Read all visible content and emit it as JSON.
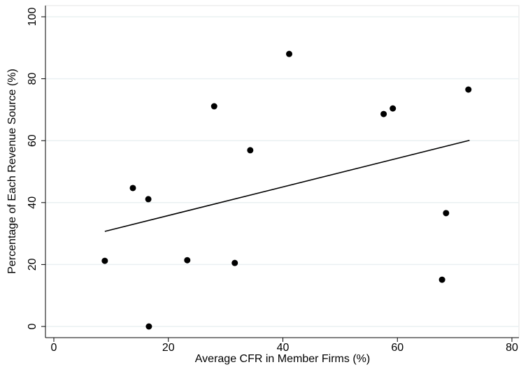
{
  "chart_data": {
    "type": "scatter",
    "x_label": "Average CFR in Member Firms (%)",
    "y_label": "Percentage of Each Revenue Source (%)",
    "xlim": [
      0,
      80
    ],
    "xticks": [
      0,
      20,
      40,
      60,
      80
    ],
    "ylim": [
      0,
      100
    ],
    "yticks": [
      0,
      20,
      40,
      60,
      80,
      100
    ],
    "grid": true,
    "series": [
      {
        "type": "scatter",
        "color": "#000000",
        "x": [
          8.9,
          13.8,
          16.5,
          16.6,
          23.3,
          28.0,
          31.6,
          34.3,
          41.1,
          57.6,
          59.2,
          67.8,
          68.5,
          72.4
        ],
        "values": [
          21.2,
          44.7,
          41.1,
          0,
          21.4,
          71.1,
          20.5,
          56.9,
          88.0,
          68.6,
          70.4,
          15.1,
          36.6,
          76.5
        ]
      },
      {
        "type": "line",
        "color": "#000000",
        "x": [
          8.9,
          72.6
        ],
        "values": [
          30.7,
          60.1
        ]
      }
    ]
  }
}
